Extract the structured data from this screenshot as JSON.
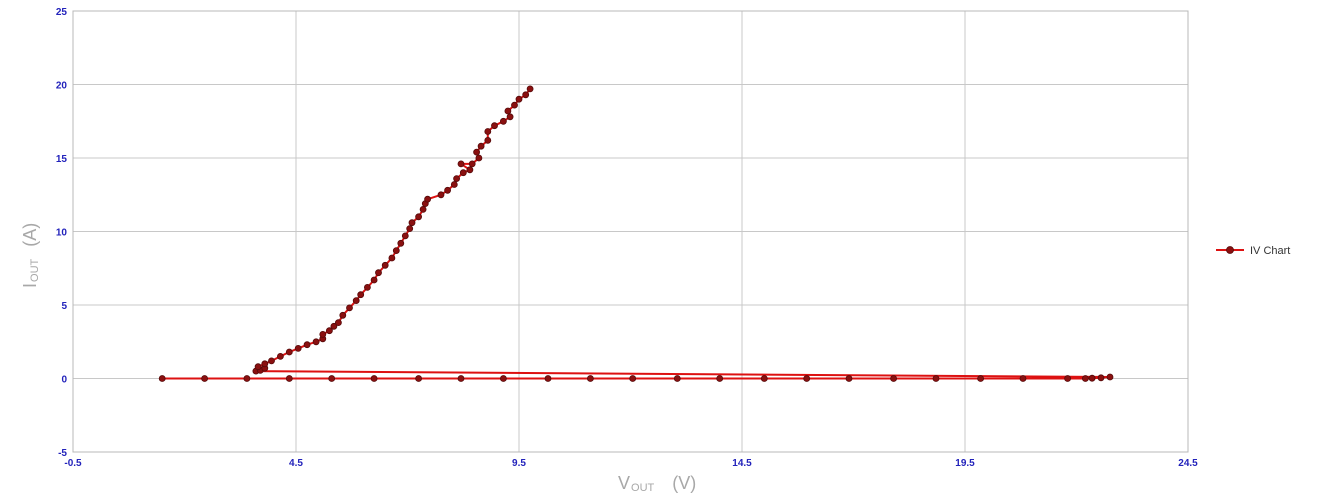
{
  "chart_data": {
    "type": "line",
    "xlabel": "VOUT (V)",
    "ylabel": "IOUT (A)",
    "xlabel_parts": [
      "V",
      "OUT",
      "(V)"
    ],
    "ylabel_parts": [
      "I",
      "OUT",
      "(A)"
    ],
    "xlim": [
      -0.5,
      24.5
    ],
    "ylim": [
      -5,
      25
    ],
    "xticks": [
      "-0.5",
      "4.5",
      "9.5",
      "14.5",
      "19.5",
      "24.5"
    ],
    "yticks": [
      "-5",
      "0",
      "5",
      "10",
      "15",
      "20",
      "25"
    ],
    "grid": true,
    "legend_position": "right",
    "colors": {
      "line": "#dd1111",
      "marker_fill": "#8a1010",
      "marker_stroke": "#550a0a",
      "tick_label": "#2222bb",
      "axis_title": "#a8a8a8",
      "grid": "#c8c8c8"
    },
    "series": [
      {
        "name": "IV Chart",
        "points": [
          [
            1.5,
            0.0
          ],
          [
            2.45,
            0.0
          ],
          [
            3.4,
            0.0
          ],
          [
            4.35,
            0.0
          ],
          [
            5.3,
            0.0
          ],
          [
            6.25,
            0.0
          ],
          [
            7.25,
            0.0
          ],
          [
            8.2,
            0.0
          ],
          [
            9.15,
            0.0
          ],
          [
            10.15,
            0.0
          ],
          [
            11.1,
            0.0
          ],
          [
            12.05,
            0.0
          ],
          [
            13.05,
            0.0
          ],
          [
            14.0,
            0.0
          ],
          [
            15.0,
            0.0
          ],
          [
            15.95,
            0.0
          ],
          [
            16.9,
            0.0
          ],
          [
            17.9,
            0.0
          ],
          [
            18.85,
            0.0
          ],
          [
            19.85,
            0.0
          ],
          [
            20.8,
            0.0
          ],
          [
            21.8,
            0.0
          ],
          [
            22.2,
            0.0
          ],
          [
            22.35,
            0.02
          ],
          [
            22.55,
            0.05
          ],
          [
            22.75,
            0.1
          ],
          [
            3.6,
            0.5
          ],
          [
            3.7,
            0.55
          ],
          [
            3.8,
            0.7
          ],
          [
            3.65,
            0.8
          ],
          [
            3.8,
            1.0
          ],
          [
            3.95,
            1.2
          ],
          [
            4.15,
            1.5
          ],
          [
            4.35,
            1.8
          ],
          [
            4.55,
            2.05
          ],
          [
            4.75,
            2.3
          ],
          [
            4.95,
            2.5
          ],
          [
            5.1,
            2.7
          ],
          [
            5.1,
            3.0
          ],
          [
            5.25,
            3.25
          ],
          [
            5.35,
            3.55
          ],
          [
            5.45,
            3.8
          ],
          [
            5.55,
            4.3
          ],
          [
            5.7,
            4.8
          ],
          [
            5.85,
            5.3
          ],
          [
            5.95,
            5.7
          ],
          [
            6.1,
            6.2
          ],
          [
            6.25,
            6.7
          ],
          [
            6.35,
            7.2
          ],
          [
            6.5,
            7.7
          ],
          [
            6.65,
            8.2
          ],
          [
            6.75,
            8.7
          ],
          [
            6.85,
            9.2
          ],
          [
            6.95,
            9.7
          ],
          [
            7.05,
            10.2
          ],
          [
            7.1,
            10.6
          ],
          [
            7.25,
            11.0
          ],
          [
            7.35,
            11.5
          ],
          [
            7.4,
            11.9
          ],
          [
            7.45,
            12.2
          ],
          [
            7.75,
            12.5
          ],
          [
            7.9,
            12.8
          ],
          [
            8.05,
            13.2
          ],
          [
            8.1,
            13.6
          ],
          [
            8.25,
            14.0
          ],
          [
            8.4,
            14.2
          ],
          [
            8.2,
            14.6
          ],
          [
            8.45,
            14.6
          ],
          [
            8.6,
            15.0
          ],
          [
            8.55,
            15.4
          ],
          [
            8.65,
            15.8
          ],
          [
            8.8,
            16.2
          ],
          [
            8.8,
            16.8
          ],
          [
            8.95,
            17.2
          ],
          [
            9.15,
            17.5
          ],
          [
            9.3,
            17.8
          ],
          [
            9.25,
            18.2
          ],
          [
            9.4,
            18.6
          ],
          [
            9.5,
            19.0
          ],
          [
            9.65,
            19.3
          ],
          [
            9.75,
            19.7
          ]
        ]
      }
    ]
  }
}
